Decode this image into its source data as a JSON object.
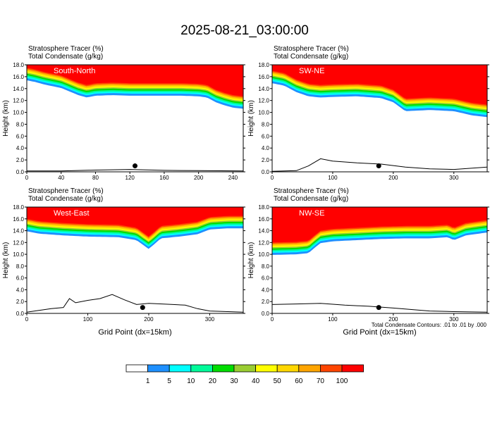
{
  "figure": {
    "title": "2025-08-21_03:00:00",
    "footnote": "Total Condensate Contours: .01 to .01 by .000"
  },
  "colorbar": {
    "levels": [
      "1",
      "5",
      "10",
      "20",
      "30",
      "40",
      "50",
      "60",
      "70",
      "100"
    ],
    "colors": [
      "#ffffff",
      "#1e90ff",
      "#00ffff",
      "#00fa9a",
      "#00dd00",
      "#9acd32",
      "#ffff00",
      "#ffd700",
      "#ffa500",
      "#ff4500",
      "#ff0000"
    ]
  },
  "chart_data": [
    {
      "type": "heatmap",
      "region": "South-North",
      "subtitle1": "Stratosphere Tracer    (%)",
      "subtitle2": "Total Condensate    (g/kg)",
      "ylabel": "Height (km)",
      "xlabel": "",
      "xlim": [
        0,
        252
      ],
      "ylim": [
        0,
        18
      ],
      "xticks": [
        "0",
        "40",
        "80",
        "120",
        "160",
        "200",
        "240"
      ],
      "yticks": [
        "0.0",
        "2.0",
        "4.0",
        "6.0",
        "8.0",
        "10.0",
        "12.0",
        "14.0",
        "16.0",
        "18.0"
      ],
      "tropopause_x": [
        0,
        10,
        20,
        40,
        60,
        70,
        80,
        100,
        120,
        150,
        180,
        200,
        210,
        220,
        230,
        240,
        252
      ],
      "tropopause_y": [
        15.5,
        15.2,
        14.8,
        14.2,
        13.0,
        12.6,
        12.9,
        13.0,
        12.9,
        12.9,
        12.9,
        12.8,
        12.6,
        11.8,
        11.3,
        10.9,
        10.7
      ],
      "marker": {
        "x": 126,
        "y": 1.0
      },
      "terrain_x": [
        0,
        40,
        80,
        120,
        160,
        200,
        252
      ],
      "terrain_y": [
        0.15,
        0.15,
        0.3,
        0.4,
        0.25,
        0.2,
        0.15
      ]
    },
    {
      "type": "heatmap",
      "region": "SW-NE",
      "subtitle1": "Stratosphere Tracer    (%)",
      "subtitle2": "Total Condensate    (g/kg)",
      "ylabel": "Height (km)",
      "xlabel": "",
      "xlim": [
        0,
        355
      ],
      "ylim": [
        0,
        18
      ],
      "xticks": [
        "0",
        "100",
        "200",
        "300"
      ],
      "yticks": [
        "0.0",
        "2.0",
        "4.0",
        "6.0",
        "8.0",
        "10.0",
        "12.0",
        "14.0",
        "16.0",
        "18.0"
      ],
      "tropopause_x": [
        0,
        20,
        40,
        60,
        80,
        100,
        140,
        180,
        200,
        220,
        260,
        300,
        330,
        355
      ],
      "tropopause_y": [
        15.0,
        14.6,
        13.5,
        12.8,
        12.6,
        12.7,
        12.8,
        12.5,
        11.8,
        10.3,
        10.5,
        10.3,
        9.6,
        9.3
      ],
      "marker": {
        "x": 176,
        "y": 1.0
      },
      "terrain_x": [
        0,
        40,
        60,
        80,
        100,
        140,
        180,
        220,
        260,
        300,
        355
      ],
      "terrain_y": [
        0.1,
        0.2,
        1.0,
        2.2,
        1.8,
        1.5,
        1.3,
        0.8,
        0.5,
        0.4,
        0.8
      ]
    },
    {
      "type": "heatmap",
      "region": "West-East",
      "subtitle1": "Stratosphere Tracer    (%)",
      "subtitle2": "Total Condensate    (g/kg)",
      "ylabel": "Height (km)",
      "xlabel": "Grid Point (dx=15km)",
      "xlim": [
        0,
        355
      ],
      "ylim": [
        0,
        18
      ],
      "xticks": [
        "0",
        "100",
        "200",
        "300"
      ],
      "yticks": [
        "0.0",
        "2.0",
        "4.0",
        "6.0",
        "8.0",
        "10.0",
        "12.0",
        "14.0",
        "16.0",
        "18.0"
      ],
      "tropopause_x": [
        0,
        20,
        60,
        100,
        150,
        180,
        200,
        220,
        250,
        280,
        300,
        330,
        355
      ],
      "tropopause_y": [
        14.0,
        13.6,
        13.3,
        13.1,
        13.0,
        12.5,
        11.0,
        12.8,
        13.1,
        13.5,
        14.3,
        14.5,
        14.5
      ],
      "marker": {
        "x": 190,
        "y": 1.0
      },
      "terrain_x": [
        0,
        20,
        40,
        60,
        70,
        80,
        100,
        120,
        140,
        160,
        180,
        200,
        240,
        260,
        280,
        300,
        355
      ],
      "terrain_y": [
        0.2,
        0.5,
        0.8,
        1.0,
        2.5,
        1.8,
        2.2,
        2.5,
        3.2,
        2.3,
        1.5,
        1.7,
        1.5,
        1.4,
        0.8,
        0.4,
        0.2
      ]
    },
    {
      "type": "heatmap",
      "region": "NW-SE",
      "subtitle1": "Stratosphere Tracer    (%)",
      "subtitle2": "Total Condensate    (g/kg)",
      "ylabel": "Height (km)",
      "xlabel": "Grid Point (dx=15km)",
      "xlim": [
        0,
        355
      ],
      "ylim": [
        0,
        18
      ],
      "xticks": [
        "0",
        "100",
        "200",
        "300"
      ],
      "yticks": [
        "0.0",
        "2.0",
        "4.0",
        "6.0",
        "8.0",
        "10.0",
        "12.0",
        "14.0",
        "16.0",
        "18.0"
      ],
      "tropopause_x": [
        0,
        40,
        60,
        70,
        80,
        100,
        140,
        180,
        220,
        260,
        290,
        300,
        320,
        355
      ],
      "tropopause_y": [
        10.0,
        10.1,
        10.3,
        11.2,
        12.0,
        12.3,
        12.5,
        12.7,
        12.8,
        12.8,
        13.0,
        12.5,
        13.3,
        13.8
      ],
      "marker": {
        "x": 176,
        "y": 1.0
      },
      "terrain_x": [
        0,
        40,
        80,
        120,
        160,
        200,
        260,
        300,
        355
      ],
      "terrain_y": [
        1.5,
        1.6,
        1.7,
        1.4,
        1.2,
        0.9,
        0.4,
        0.3,
        0.2
      ]
    }
  ]
}
